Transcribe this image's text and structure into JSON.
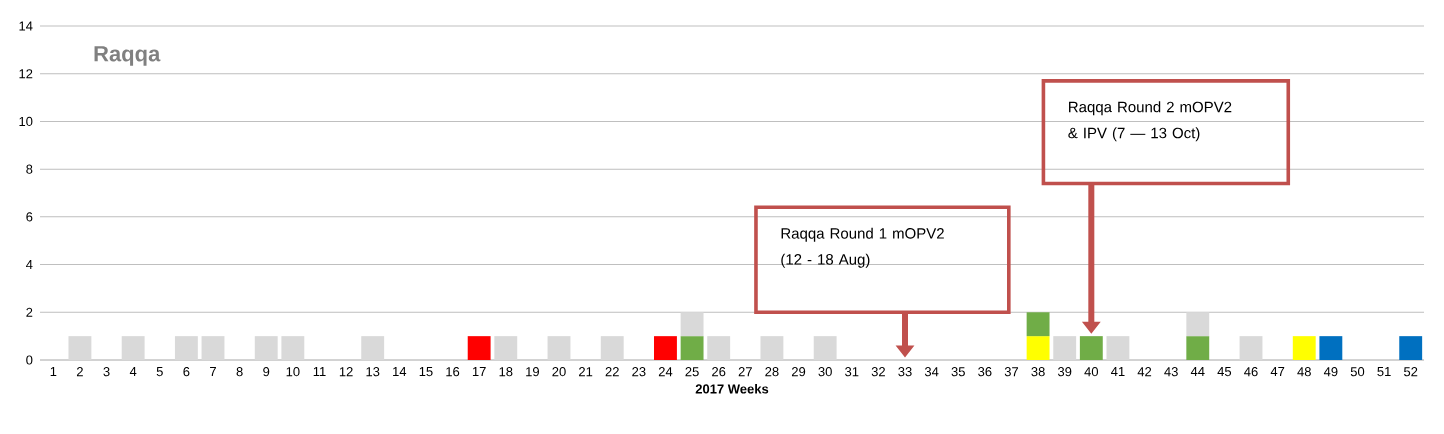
{
  "chart_data": {
    "type": "bar",
    "stacked": true,
    "title": "Raqqa",
    "xlabel": "2017 Weeks",
    "categories": [
      "1",
      "2",
      "3",
      "4",
      "5",
      "6",
      "7",
      "8",
      "9",
      "10",
      "11",
      "12",
      "13",
      "14",
      "15",
      "16",
      "17",
      "18",
      "19",
      "20",
      "21",
      "22",
      "23",
      "24",
      "25",
      "26",
      "27",
      "28",
      "29",
      "30",
      "31",
      "32",
      "33",
      "34",
      "35",
      "36",
      "37",
      "38",
      "39",
      "40",
      "41",
      "42",
      "43",
      "44",
      "45",
      "46",
      "47",
      "48",
      "49",
      "50",
      "51",
      "52"
    ],
    "series": [
      {
        "color": "#ffff00",
        "values": [
          null,
          null,
          null,
          null,
          null,
          null,
          null,
          null,
          null,
          null,
          null,
          null,
          null,
          null,
          null,
          null,
          null,
          null,
          null,
          null,
          null,
          null,
          null,
          null,
          null,
          null,
          null,
          null,
          null,
          null,
          null,
          null,
          null,
          null,
          null,
          null,
          null,
          1,
          null,
          null,
          null,
          null,
          null,
          null,
          null,
          null,
          null,
          1,
          null,
          null,
          null,
          null
        ]
      },
      {
        "color": "#70ad47",
        "values": [
          null,
          null,
          null,
          null,
          null,
          null,
          null,
          null,
          null,
          null,
          null,
          null,
          null,
          null,
          null,
          null,
          null,
          null,
          null,
          null,
          null,
          null,
          null,
          null,
          1,
          null,
          null,
          null,
          null,
          null,
          null,
          null,
          null,
          null,
          null,
          null,
          null,
          1,
          null,
          1,
          null,
          null,
          null,
          1,
          null,
          null,
          null,
          null,
          null,
          null,
          null,
          null
        ]
      },
      {
        "color": "#ff0000",
        "values": [
          null,
          null,
          null,
          null,
          null,
          null,
          null,
          null,
          null,
          null,
          null,
          null,
          null,
          null,
          null,
          null,
          1,
          null,
          null,
          null,
          null,
          null,
          null,
          1,
          null,
          null,
          null,
          null,
          null,
          null,
          null,
          null,
          null,
          null,
          null,
          null,
          null,
          null,
          null,
          null,
          null,
          null,
          null,
          null,
          null,
          null,
          null,
          null,
          null,
          null,
          null,
          null
        ]
      },
      {
        "color": "#0070c0",
        "values": [
          null,
          null,
          null,
          null,
          null,
          null,
          null,
          null,
          null,
          null,
          null,
          null,
          null,
          null,
          null,
          null,
          null,
          null,
          null,
          null,
          null,
          null,
          null,
          null,
          null,
          null,
          null,
          null,
          null,
          null,
          null,
          null,
          null,
          null,
          null,
          null,
          null,
          null,
          null,
          null,
          null,
          null,
          null,
          null,
          null,
          null,
          null,
          null,
          1,
          null,
          null,
          1
        ]
      },
      {
        "color": "#d9d9d9",
        "values": [
          null,
          1,
          null,
          1,
          null,
          1,
          1,
          null,
          1,
          1,
          null,
          null,
          1,
          null,
          null,
          null,
          null,
          1,
          null,
          1,
          null,
          1,
          null,
          null,
          1,
          1,
          null,
          1,
          null,
          1,
          null,
          null,
          null,
          null,
          null,
          null,
          null,
          null,
          1,
          null,
          1,
          null,
          null,
          1,
          null,
          1,
          null,
          null,
          null,
          null,
          null,
          null
        ]
      }
    ],
    "ylim": [
      0,
      14
    ],
    "yticks": [
      0,
      2,
      4,
      6,
      8,
      10,
      12,
      14
    ],
    "grid": "y",
    "annotations": [
      "Raqqa Round 1 mOPV2 (12 - 18 Aug)",
      "Raqqa Round 2 mOPV2 & IPV (7 — 13 Oct)"
    ]
  }
}
